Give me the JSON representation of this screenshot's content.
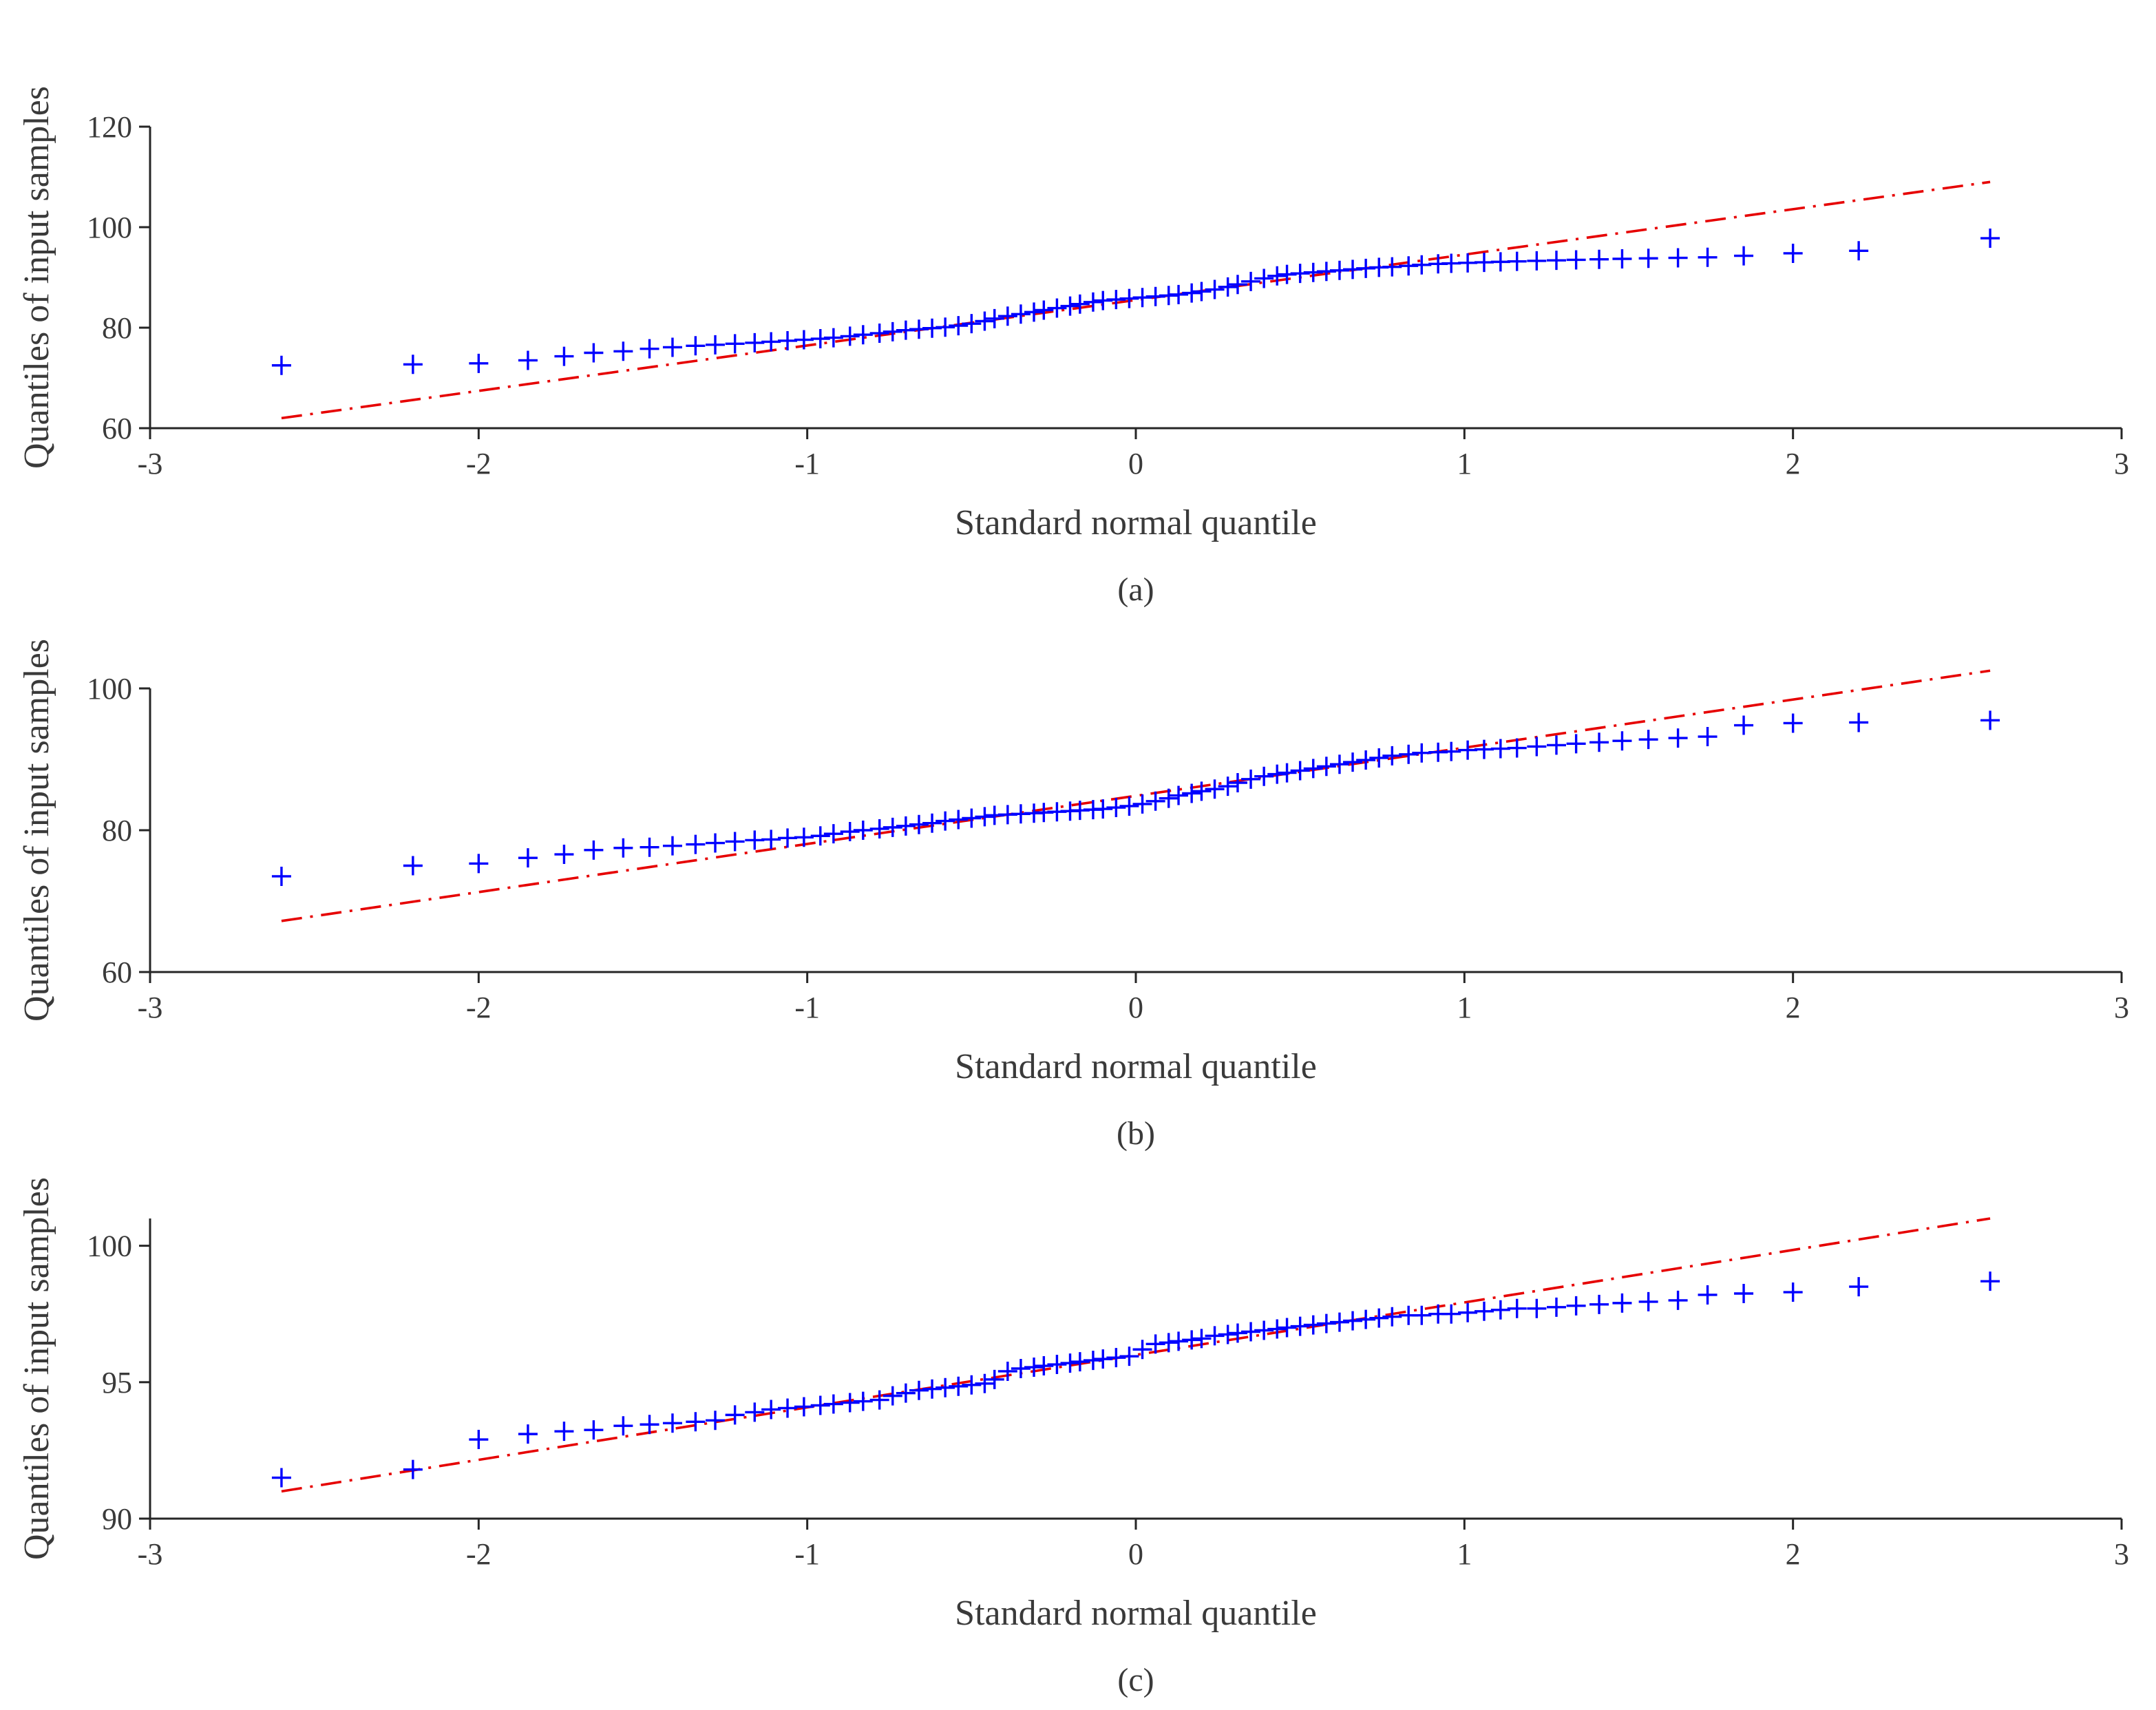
{
  "colors": {
    "samples": "#0000ff",
    "reference_line": "#e60000",
    "axes": "#262626",
    "text": "#3a3a3a"
  },
  "chart_data": [
    {
      "type": "scatter",
      "caption": "(a)",
      "xlabel": "Standard normal quantile",
      "ylabel": "Quantiles of input samples",
      "xlim": [
        -3,
        3
      ],
      "ylim": [
        60,
        120
      ],
      "xticks": [
        -3,
        -2,
        -1,
        0,
        1,
        2,
        3
      ],
      "yticks": [
        60,
        80,
        100,
        120
      ],
      "grid": false,
      "reference_line": {
        "style": "dash-dot",
        "x": [
          -2.6,
          2.6
        ],
        "y": [
          62,
          109
        ]
      },
      "samples": {
        "marker": "+",
        "x": [
          -2.6,
          -2.2,
          -2.0,
          -1.85,
          -1.74,
          -1.65,
          -1.56,
          -1.48,
          -1.41,
          -1.34,
          -1.28,
          -1.22,
          -1.16,
          -1.11,
          -1.06,
          -1.01,
          -0.96,
          -0.92,
          -0.87,
          -0.83,
          -0.78,
          -0.74,
          -0.7,
          -0.66,
          -0.62,
          -0.58,
          -0.54,
          -0.5,
          -0.46,
          -0.43,
          -0.39,
          -0.35,
          -0.31,
          -0.28,
          -0.24,
          -0.2,
          -0.17,
          -0.13,
          -0.1,
          -0.06,
          -0.02,
          0.02,
          0.06,
          0.1,
          0.13,
          0.17,
          0.2,
          0.24,
          0.28,
          0.31,
          0.35,
          0.39,
          0.43,
          0.46,
          0.5,
          0.54,
          0.58,
          0.62,
          0.66,
          0.7,
          0.74,
          0.78,
          0.83,
          0.87,
          0.92,
          0.96,
          1.01,
          1.06,
          1.11,
          1.16,
          1.22,
          1.28,
          1.34,
          1.41,
          1.48,
          1.56,
          1.65,
          1.74,
          1.85,
          2.0,
          2.2,
          2.6
        ],
        "y": [
          72.5,
          72.7,
          72.9,
          73.5,
          74.3,
          75.0,
          75.3,
          75.8,
          76.1,
          76.4,
          76.6,
          76.8,
          77.0,
          77.2,
          77.4,
          77.6,
          77.8,
          78.0,
          78.3,
          78.6,
          78.9,
          79.2,
          79.5,
          79.7,
          79.9,
          80.1,
          80.4,
          80.8,
          81.3,
          81.8,
          82.3,
          82.7,
          83.1,
          83.5,
          83.9,
          84.3,
          84.7,
          85.1,
          85.4,
          85.6,
          85.8,
          86.0,
          86.2,
          86.4,
          86.6,
          86.9,
          87.2,
          87.6,
          88.1,
          88.6,
          89.2,
          89.8,
          90.3,
          90.6,
          90.8,
          91.0,
          91.2,
          91.4,
          91.6,
          91.8,
          92.0,
          92.1,
          92.3,
          92.5,
          92.7,
          92.8,
          92.9,
          93.0,
          93.1,
          93.2,
          93.3,
          93.4,
          93.5,
          93.6,
          93.7,
          93.8,
          93.9,
          94.0,
          94.3,
          94.8,
          95.3,
          97.8
        ]
      }
    },
    {
      "type": "scatter",
      "caption": "(b)",
      "xlabel": "Standard normal quantile",
      "ylabel": "Quantiles of input samples",
      "xlim": [
        -3,
        3
      ],
      "ylim": [
        60,
        100
      ],
      "xticks": [
        -3,
        -2,
        -1,
        0,
        1,
        2,
        3
      ],
      "yticks": [
        60,
        80,
        100
      ],
      "grid": false,
      "reference_line": {
        "style": "dash-dot",
        "x": [
          -2.6,
          2.6
        ],
        "y": [
          67.2,
          102.5
        ]
      },
      "samples": {
        "marker": "+",
        "x": [
          -2.6,
          -2.2,
          -2.0,
          -1.85,
          -1.74,
          -1.65,
          -1.56,
          -1.48,
          -1.41,
          -1.34,
          -1.28,
          -1.22,
          -1.16,
          -1.11,
          -1.06,
          -1.01,
          -0.96,
          -0.92,
          -0.87,
          -0.83,
          -0.78,
          -0.74,
          -0.7,
          -0.66,
          -0.62,
          -0.58,
          -0.54,
          -0.5,
          -0.46,
          -0.43,
          -0.39,
          -0.35,
          -0.31,
          -0.28,
          -0.24,
          -0.2,
          -0.17,
          -0.13,
          -0.1,
          -0.06,
          -0.02,
          0.02,
          0.06,
          0.1,
          0.13,
          0.17,
          0.2,
          0.24,
          0.28,
          0.31,
          0.35,
          0.39,
          0.43,
          0.46,
          0.5,
          0.54,
          0.58,
          0.62,
          0.66,
          0.7,
          0.74,
          0.78,
          0.83,
          0.87,
          0.92,
          0.96,
          1.01,
          1.06,
          1.11,
          1.16,
          1.22,
          1.28,
          1.34,
          1.41,
          1.48,
          1.56,
          1.65,
          1.74,
          1.85,
          2.0,
          2.2,
          2.6
        ],
        "y": [
          73.5,
          75.0,
          75.3,
          76.1,
          76.6,
          77.2,
          77.5,
          77.6,
          77.8,
          78.0,
          78.2,
          78.4,
          78.6,
          78.7,
          78.9,
          79.0,
          79.2,
          79.5,
          79.8,
          80.0,
          80.2,
          80.4,
          80.6,
          80.8,
          81.0,
          81.3,
          81.5,
          81.7,
          81.9,
          82.1,
          82.2,
          82.3,
          82.4,
          82.5,
          82.6,
          82.7,
          82.8,
          82.9,
          83.0,
          83.2,
          83.4,
          83.7,
          84.1,
          84.5,
          84.9,
          85.2,
          85.5,
          85.8,
          86.2,
          86.7,
          87.2,
          87.6,
          87.9,
          88.1,
          88.4,
          88.7,
          89.0,
          89.3,
          89.6,
          89.9,
          90.2,
          90.5,
          90.7,
          90.9,
          91.0,
          91.1,
          91.3,
          91.4,
          91.5,
          91.6,
          91.8,
          92.0,
          92.2,
          92.4,
          92.6,
          92.8,
          93.0,
          93.2,
          94.8,
          95.1,
          95.2,
          95.5
        ]
      }
    },
    {
      "type": "scatter",
      "caption": "(c)",
      "xlabel": "Standard normal quantile",
      "ylabel": "Quantiles of input samples",
      "xlim": [
        -3,
        3
      ],
      "ylim": [
        90,
        101
      ],
      "xticks": [
        -3,
        -2,
        -1,
        0,
        1,
        2,
        3
      ],
      "yticks": [
        90,
        95,
        100
      ],
      "grid": false,
      "reference_line": {
        "style": "dash-dot",
        "x": [
          -2.6,
          2.6
        ],
        "y": [
          91.0,
          101.0
        ]
      },
      "samples": {
        "marker": "+",
        "x": [
          -2.6,
          -2.2,
          -2.0,
          -1.85,
          -1.74,
          -1.65,
          -1.56,
          -1.48,
          -1.41,
          -1.34,
          -1.28,
          -1.22,
          -1.16,
          -1.11,
          -1.06,
          -1.01,
          -0.96,
          -0.92,
          -0.87,
          -0.83,
          -0.78,
          -0.74,
          -0.7,
          -0.66,
          -0.62,
          -0.58,
          -0.54,
          -0.5,
          -0.46,
          -0.43,
          -0.39,
          -0.35,
          -0.31,
          -0.28,
          -0.24,
          -0.2,
          -0.17,
          -0.13,
          -0.1,
          -0.06,
          -0.02,
          0.02,
          0.06,
          0.1,
          0.13,
          0.17,
          0.2,
          0.24,
          0.28,
          0.31,
          0.35,
          0.39,
          0.43,
          0.46,
          0.5,
          0.54,
          0.58,
          0.62,
          0.66,
          0.7,
          0.74,
          0.78,
          0.83,
          0.87,
          0.92,
          0.96,
          1.01,
          1.06,
          1.11,
          1.16,
          1.22,
          1.28,
          1.34,
          1.41,
          1.48,
          1.56,
          1.65,
          1.74,
          1.85,
          2.0,
          2.2,
          2.6
        ],
        "y": [
          91.5,
          91.8,
          92.9,
          93.1,
          93.2,
          93.25,
          93.4,
          93.45,
          93.5,
          93.55,
          93.6,
          93.8,
          93.9,
          94.0,
          94.05,
          94.1,
          94.15,
          94.2,
          94.25,
          94.3,
          94.35,
          94.5,
          94.6,
          94.7,
          94.75,
          94.8,
          94.85,
          94.9,
          94.95,
          95.1,
          95.4,
          95.5,
          95.55,
          95.6,
          95.65,
          95.7,
          95.75,
          95.8,
          95.85,
          95.9,
          95.95,
          96.2,
          96.4,
          96.45,
          96.5,
          96.55,
          96.6,
          96.7,
          96.75,
          96.8,
          96.85,
          96.9,
          96.95,
          97.0,
          97.05,
          97.1,
          97.15,
          97.2,
          97.25,
          97.3,
          97.35,
          97.4,
          97.45,
          97.45,
          97.5,
          97.5,
          97.55,
          97.6,
          97.65,
          97.7,
          97.7,
          97.75,
          97.8,
          97.85,
          97.9,
          97.95,
          98.0,
          98.2,
          98.25,
          98.3,
          98.5,
          98.7
        ]
      }
    }
  ]
}
